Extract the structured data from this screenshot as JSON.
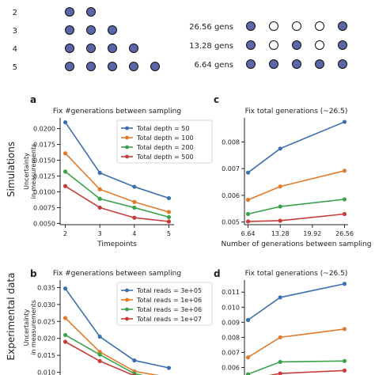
{
  "top_panel": {
    "left_rows": [
      {
        "label": "2",
        "dots": 2
      },
      {
        "label": "3",
        "dots": 3
      },
      {
        "label": "4",
        "dots": 4
      },
      {
        "label": "5",
        "dots": 5
      }
    ],
    "right_rows": [
      {
        "label": "26.56 gens",
        "pattern": [
          1,
          0,
          0,
          0,
          1
        ]
      },
      {
        "label": "13.28 gens",
        "pattern": [
          1,
          0,
          1,
          0,
          1
        ]
      },
      {
        "label": "6.64 gens",
        "pattern": [
          1,
          1,
          1,
          1,
          1
        ]
      }
    ],
    "fill_color": "#5a66a8",
    "row_labels_sim": "Simulations",
    "row_labels_exp": "Experimental data"
  },
  "colors": [
    "#3d6fb0",
    "#e07b2c",
    "#3aa34a",
    "#c63c3b"
  ],
  "chart_data": [
    {
      "panel": "a",
      "type": "line",
      "title": "Fix #generations between sampling",
      "xlabel": "Timepoints",
      "ylabel": "Uncertainty in measurements",
      "x": [
        2,
        3,
        4,
        5
      ],
      "xticks": [
        "2",
        "3",
        "4",
        "5"
      ],
      "xlim": [
        1.85,
        5.15
      ],
      "ylim": [
        0.0048,
        0.0217
      ],
      "yticks": [
        0.005,
        0.0075,
        0.01,
        0.0125,
        0.015,
        0.0175,
        0.02
      ],
      "ytick_labels": [
        "0.0050",
        "0.0075",
        "0.0100",
        "0.0125",
        "0.0150",
        "0.0175",
        "0.0200"
      ],
      "legend": "top-right",
      "series": [
        {
          "name": "Total depth = 50",
          "values": [
            0.021,
            0.013,
            0.0108,
            0.009
          ]
        },
        {
          "name": "Total depth = 100",
          "values": [
            0.0161,
            0.0104,
            0.0084,
            0.0068
          ]
        },
        {
          "name": "Total depth = 200",
          "values": [
            0.0132,
            0.0089,
            0.0075,
            0.006
          ]
        },
        {
          "name": "Total depth = 500",
          "values": [
            0.0109,
            0.0075,
            0.0059,
            0.0053
          ]
        }
      ]
    },
    {
      "panel": "c",
      "type": "line",
      "title": "Fix total generations (~26.5)",
      "xlabel": "Number of generations between sampling",
      "ylabel": "",
      "x": [
        6.64,
        13.28,
        26.56
      ],
      "xticks": [
        "6.64",
        "13.28",
        "19.92",
        "26.56"
      ],
      "xtick_values": [
        6.64,
        13.28,
        19.92,
        26.56
      ],
      "xlim": [
        5.9,
        27.3
      ],
      "ylim": [
        0.0049,
        0.0089
      ],
      "yticks": [
        0.005,
        0.006,
        0.007,
        0.008
      ],
      "ytick_labels": [
        "0.005",
        "0.006",
        "0.007",
        "0.008"
      ],
      "series": [
        {
          "values": [
            0.00685,
            0.00775,
            0.00875
          ]
        },
        {
          "values": [
            0.00583,
            0.00633,
            0.00692
          ]
        },
        {
          "values": [
            0.0053,
            0.00558,
            0.00585
          ]
        },
        {
          "values": [
            0.00502,
            0.00505,
            0.0053
          ]
        }
      ]
    },
    {
      "panel": "b",
      "type": "line",
      "title": "Fix #generations between sampling",
      "xlabel": "",
      "ylabel": "Uncertainty in measurements",
      "x": [
        2,
        3,
        4,
        5
      ],
      "xlim": [
        1.85,
        5.15
      ],
      "ylim": [
        0.0092,
        0.0372
      ],
      "yticks": [
        0.01,
        0.015,
        0.02,
        0.025,
        0.03,
        0.035
      ],
      "ytick_labels": [
        "0.010",
        "0.015",
        "0.020",
        "0.025",
        "0.030",
        "0.035"
      ],
      "legend": "top-right",
      "series": [
        {
          "name": "Total reads = 3e+05",
          "values": [
            0.0347,
            0.0205,
            0.0135,
            0.0113
          ]
        },
        {
          "name": "Total reads = 1e+06",
          "values": [
            0.026,
            0.016,
            0.0103,
            0.0085
          ]
        },
        {
          "name": "Total reads = 3e+06",
          "values": [
            0.021,
            0.0152,
            0.0096,
            0.0075
          ]
        },
        {
          "name": "Total reads = 1e+07",
          "values": [
            0.019,
            0.0133,
            0.009,
            0.0068
          ]
        }
      ]
    },
    {
      "panel": "d",
      "type": "line",
      "title": "Fix total generations (~26.5)",
      "xlabel": "",
      "ylabel": "",
      "x": [
        6.64,
        13.28,
        26.56
      ],
      "xlim": [
        5.9,
        27.3
      ],
      "ylim": [
        0.0055,
        0.0118
      ],
      "yticks": [
        0.006,
        0.007,
        0.008,
        0.009,
        0.01,
        0.011
      ],
      "ytick_labels": [
        "0.006",
        "0.007",
        "0.008",
        "0.009",
        "0.010",
        "0.011"
      ],
      "series": [
        {
          "values": [
            0.00915,
            0.01065,
            0.01155
          ]
        },
        {
          "values": [
            0.00667,
            0.008,
            0.00855
          ]
        },
        {
          "values": [
            0.00555,
            0.00637,
            0.00643
          ]
        },
        {
          "values": [
            0.0052,
            0.0056,
            0.0058
          ]
        }
      ]
    }
  ]
}
